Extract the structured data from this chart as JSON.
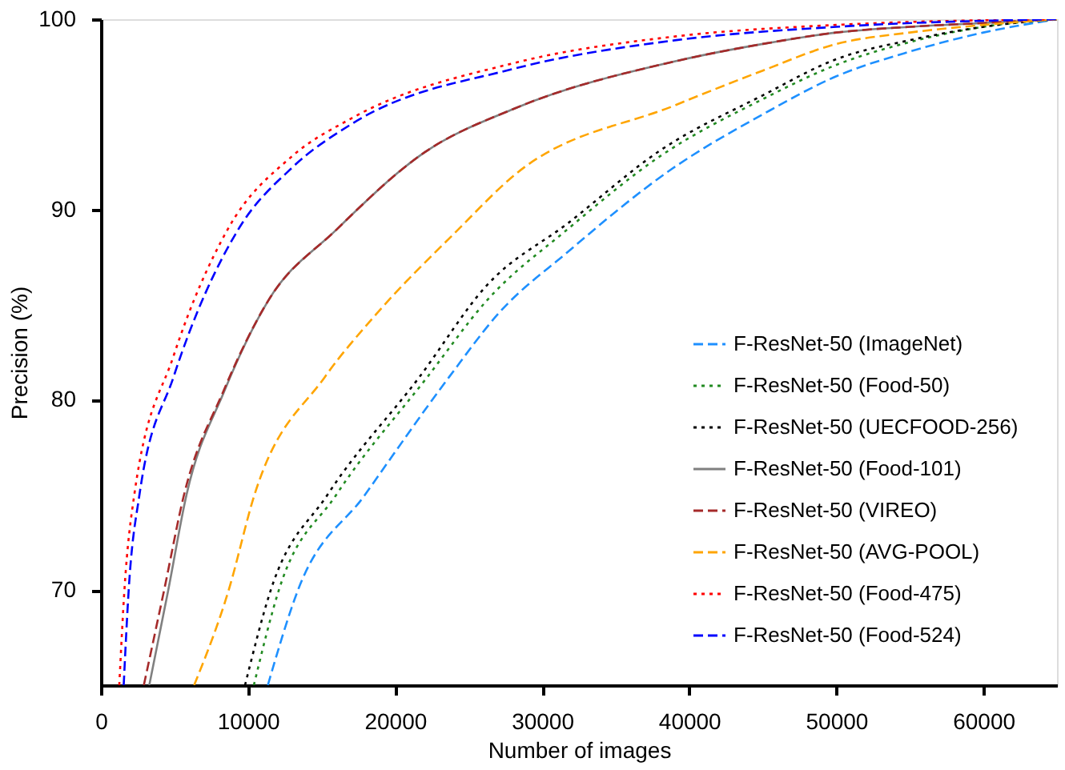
{
  "chart_data": {
    "type": "line",
    "xlabel": "Number of images",
    "ylabel": "Precision (%)",
    "xlim": [
      0,
      65000
    ],
    "ylim": [
      65,
      100
    ],
    "xticks": [
      0,
      10000,
      20000,
      30000,
      40000,
      50000,
      60000
    ],
    "yticks": [
      70,
      80,
      90,
      100
    ],
    "grid": false,
    "legend": "bottom right",
    "marker": "none",
    "series": [
      {
        "name": "F-ResNet-50 (ImageNet)",
        "color": "#1e90ff",
        "line_style": "dashed",
        "x": [
          11350,
          13400,
          17950,
          23680,
          26990,
          31790,
          38760,
          45000,
          50000,
          55000,
          60000,
          65000
        ],
        "values": [
          65,
          70,
          75,
          81.2,
          84.5,
          87.8,
          92.1,
          95.0,
          97.0,
          98.3,
          99.3,
          100
        ]
      },
      {
        "name": "F-ResNet-50 (Food-50)",
        "color": "#228b22",
        "line_style": "dotted",
        "x": [
          10400,
          12100,
          16000,
          22200,
          26220,
          31790,
          38020,
          45000,
          50000,
          55000,
          60000,
          65000
        ],
        "values": [
          65,
          70,
          75,
          81.2,
          85.2,
          89.0,
          92.8,
          95.8,
          97.6,
          98.8,
          99.6,
          100
        ]
      },
      {
        "name": "F-ResNet-50 (UECFOOD-256)",
        "color": "#000000",
        "line_style": "dotted",
        "x": [
          9800,
          11550,
          15400,
          21660,
          26220,
          31790,
          38020,
          45000,
          50000,
          55000,
          60000,
          65000
        ],
        "values": [
          65,
          70,
          75,
          81.2,
          86.0,
          89.3,
          93.1,
          96.0,
          97.9,
          98.9,
          99.6,
          100
        ]
      },
      {
        "name": "F-ResNet-50 (Food-101)",
        "color": "#808080",
        "line_style": "solid",
        "x": [
          3290,
          4580,
          5820,
          8360,
          11370,
          15960,
          22000,
          28100,
          39110,
          45000,
          50000,
          55000,
          60000,
          65000
        ],
        "values": [
          65,
          70,
          75,
          80.4,
          85.2,
          88.9,
          93.0,
          95.3,
          97.8,
          98.7,
          99.3,
          99.6,
          99.8,
          100
        ]
      },
      {
        "name": "F-ResNet-50 (VIREO)",
        "color": "#a52a2a",
        "line_style": "dashed",
        "x": [
          2920,
          4300,
          5650,
          8300,
          11370,
          15960,
          22000,
          28100,
          39110,
          45000,
          50000,
          55000,
          60000,
          65000
        ],
        "values": [
          65,
          70,
          75,
          80.4,
          85.2,
          88.9,
          93.0,
          95.3,
          97.8,
          98.7,
          99.3,
          99.6,
          99.8,
          100
        ]
      },
      {
        "name": "F-ResNet-50 (AVG-POOL)",
        "color": "#ffa500",
        "line_style": "dashed",
        "x": [
          6340,
          8690,
          10440,
          15230,
          18720,
          24230,
          28100,
          39110,
          45000,
          50000,
          55000,
          60000,
          65000
        ],
        "values": [
          65,
          70,
          75,
          81.2,
          84.5,
          88.9,
          91.8,
          95.5,
          97.3,
          98.7,
          99.3,
          99.7,
          100
        ]
      },
      {
        "name": "F-ResNet-50 (Food-475)",
        "color": "#ff0000",
        "line_style": "dotted",
        "x": [
          1250,
          1600,
          2270,
          4940,
          8580,
          13000,
          17060,
          28100,
          39110,
          50000,
          65000
        ],
        "values": [
          65,
          70,
          75,
          82.3,
          88.9,
          92.8,
          94.8,
          97.7,
          99.1,
          99.7,
          100
        ]
      },
      {
        "name": "F-ResNet-50 (Food-524)",
        "color": "#0000ff",
        "line_style": "dashed",
        "x": [
          1550,
          1890,
          2620,
          4940,
          9300,
          13000,
          17060,
          28100,
          39110,
          50000,
          65000
        ],
        "values": [
          65,
          70,
          75,
          81.2,
          88.9,
          92.2,
          94.5,
          97.4,
          98.9,
          99.6,
          100
        ]
      }
    ]
  }
}
